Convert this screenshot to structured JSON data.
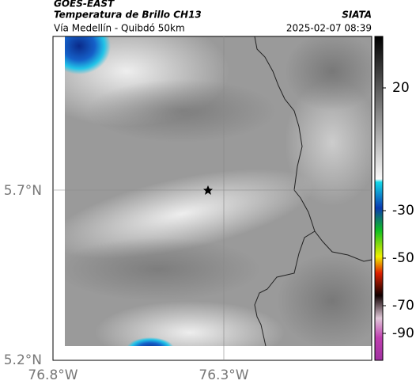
{
  "header": {
    "source": "GOES-EAST",
    "title": "Temperatura de Brillo CH13",
    "subtitle": "Vía Medellín - Quibdó 50km",
    "org": "SIATA",
    "timestamp": "2025-02-07 08:39"
  },
  "axes": {
    "lat_labels": [
      "5.7°N",
      "5.2°N"
    ],
    "lon_labels": [
      "76.8°W",
      "76.3°W"
    ]
  },
  "colorbar": {
    "tick_labels": [
      "20",
      "-30",
      "-50",
      "-70",
      "-90"
    ]
  }
}
